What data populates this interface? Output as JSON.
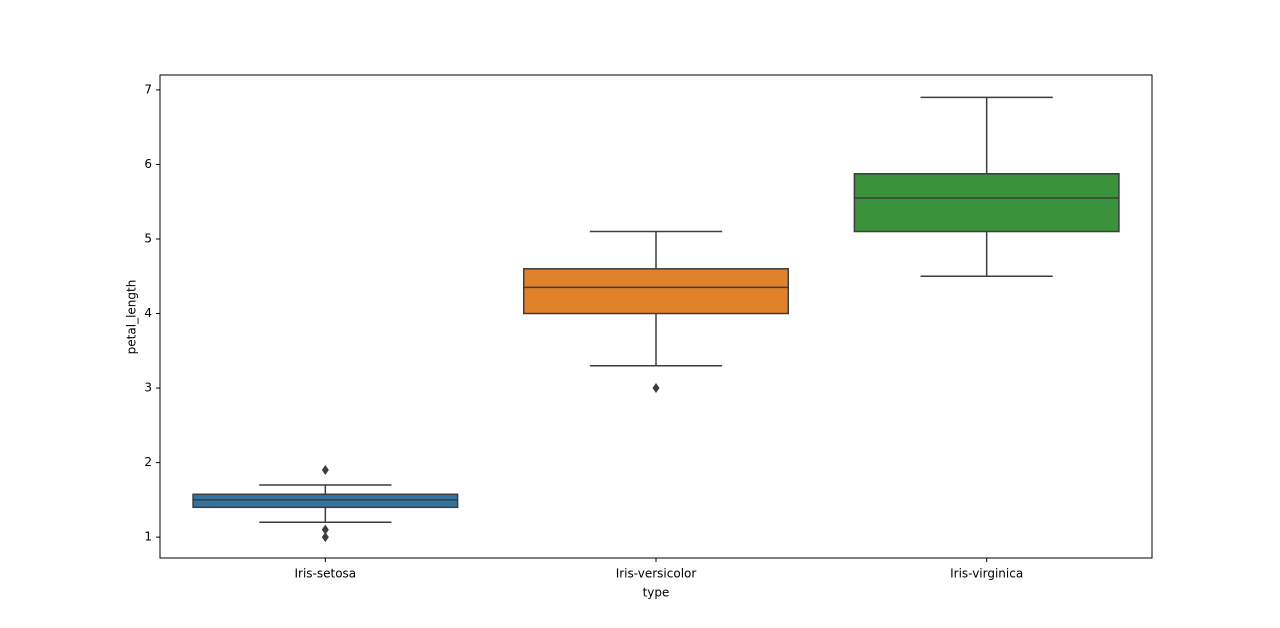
{
  "chart_data": {
    "type": "box",
    "x_label": "type",
    "y_label": "petal_length",
    "categories": [
      "Iris-setosa",
      "Iris-versicolor",
      "Iris-virginica"
    ],
    "boxes": [
      {
        "whislo": 1.2,
        "q1": 1.4,
        "med": 1.5,
        "q3": 1.575,
        "whishi": 1.7,
        "fliers": [
          1.0,
          1.1,
          1.9
        ],
        "color": "#3274a1"
      },
      {
        "whislo": 3.3,
        "q1": 4.0,
        "med": 4.35,
        "q3": 4.6,
        "whishi": 5.1,
        "fliers": [
          3.0
        ],
        "color": "#e1812c"
      },
      {
        "whislo": 4.5,
        "q1": 5.1,
        "med": 5.55,
        "q3": 5.875,
        "whishi": 6.9,
        "fliers": [],
        "color": "#3a923a"
      }
    ],
    "ylim": [
      0.72,
      7.2
    ],
    "yticks": [
      1,
      2,
      3,
      4,
      5,
      6,
      7
    ],
    "grid": false
  }
}
